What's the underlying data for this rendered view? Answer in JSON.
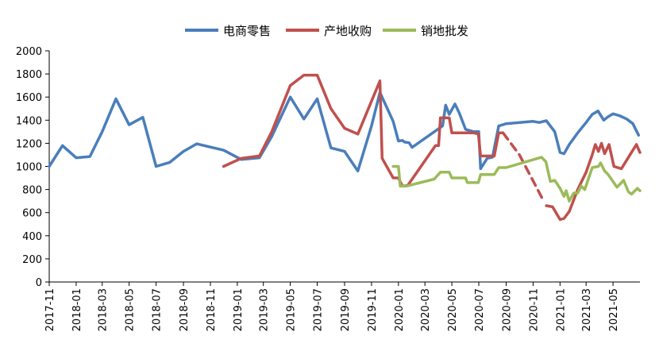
{
  "chart_data": {
    "type": "line",
    "title": "",
    "xlabel": "",
    "ylabel": "",
    "ylim": [
      0,
      2000
    ],
    "yticks": [
      0,
      200,
      400,
      600,
      800,
      1000,
      1200,
      1400,
      1600,
      1800,
      2000
    ],
    "xlim": [
      "2017-11",
      "2021-07"
    ],
    "xticks": [
      "2017-11",
      "2018-01",
      "2018-03",
      "2018-05",
      "2018-07",
      "2018-09",
      "2018-11",
      "2019-01",
      "2019-03",
      "2019-05",
      "2019-07",
      "2019-09",
      "2019-11",
      "2020-01",
      "2020-03",
      "2020-05",
      "2020-07",
      "2020-09",
      "2020-11",
      "2021-01",
      "2021-03",
      "2021-05"
    ],
    "grid": false,
    "legend": "top-center",
    "series": [
      {
        "name": "电商零售",
        "color": "#4A7EBB",
        "points": [
          [
            "2017-11-01",
            1000
          ],
          [
            "2017-12-01",
            1180
          ],
          [
            "2018-01-01",
            1075
          ],
          [
            "2018-02-01",
            1085
          ],
          [
            "2018-03-01",
            1300
          ],
          [
            "2018-04-01",
            1585
          ],
          [
            "2018-05-01",
            1360
          ],
          [
            "2018-06-01",
            1425
          ],
          [
            "2018-07-01",
            1000
          ],
          [
            "2018-08-01",
            1035
          ],
          [
            "2018-09-01",
            1130
          ],
          [
            "2018-10-01",
            1195
          ],
          [
            "2018-12-01",
            1140
          ],
          [
            "2019-01-10",
            1060
          ],
          [
            "2019-02-20",
            1075
          ],
          [
            "2019-03-20",
            1260
          ],
          [
            "2019-05-01",
            1600
          ],
          [
            "2019-06-01",
            1410
          ],
          [
            "2019-07-01",
            1585
          ],
          [
            "2019-08-01",
            1160
          ],
          [
            "2019-09-01",
            1130
          ],
          [
            "2019-10-01",
            960
          ],
          [
            "2019-11-01",
            1350
          ],
          [
            "2019-11-20",
            1640
          ],
          [
            "2019-12-20",
            1390
          ],
          [
            "2020-01-01",
            1220
          ],
          [
            "2020-01-10",
            1225
          ],
          [
            "2020-01-15",
            1210
          ],
          [
            "2020-01-25",
            1205
          ],
          [
            "2020-02-01",
            1165
          ],
          [
            "2020-04-10",
            1350
          ],
          [
            "2020-04-17",
            1530
          ],
          [
            "2020-04-25",
            1450
          ],
          [
            "2020-05-08",
            1540
          ],
          [
            "2020-05-18",
            1460
          ],
          [
            "2020-06-01",
            1320
          ],
          [
            "2020-06-20",
            1300
          ],
          [
            "2020-07-01",
            1300
          ],
          [
            "2020-07-05",
            980
          ],
          [
            "2020-07-20",
            1070
          ],
          [
            "2020-08-01",
            1080
          ],
          [
            "2020-08-15",
            1350
          ],
          [
            "2020-09-01",
            1370
          ],
          [
            "2020-11-01",
            1390
          ],
          [
            "2020-11-15",
            1380
          ],
          [
            "2020-12-01",
            1395
          ],
          [
            "2020-12-20",
            1300
          ],
          [
            "2021-01-01",
            1120
          ],
          [
            "2021-01-10",
            1110
          ],
          [
            "2021-01-22",
            1190
          ],
          [
            "2021-02-10",
            1290
          ],
          [
            "2021-03-01",
            1380
          ],
          [
            "2021-03-15",
            1450
          ],
          [
            "2021-03-28",
            1480
          ],
          [
            "2021-04-10",
            1400
          ],
          [
            "2021-04-20",
            1430
          ],
          [
            "2021-05-01",
            1455
          ],
          [
            "2021-05-15",
            1440
          ],
          [
            "2021-06-01",
            1410
          ],
          [
            "2021-06-15",
            1370
          ],
          [
            "2021-06-28",
            1270
          ]
        ]
      },
      {
        "name": "产地收购",
        "color": "#C0504D",
        "points": [
          [
            "2018-12-01",
            1000
          ],
          [
            "2019-01-10",
            1070
          ],
          [
            "2019-02-20",
            1090
          ],
          [
            "2019-03-20",
            1300
          ],
          [
            "2019-05-01",
            1700
          ],
          [
            "2019-06-01",
            1790
          ],
          [
            "2019-07-01",
            1790
          ],
          [
            "2019-08-01",
            1500
          ],
          [
            "2019-09-01",
            1330
          ],
          [
            "2019-10-01",
            1280
          ],
          [
            "2019-11-20",
            1740
          ],
          [
            "2019-11-25",
            1070
          ],
          [
            "2019-12-20",
            900
          ],
          [
            "2020-01-01",
            900
          ],
          [
            "2020-01-10",
            830
          ],
          [
            "2020-01-22",
            835
          ],
          [
            "2020-03-25",
            1180
          ],
          [
            "2020-04-01",
            1180
          ],
          [
            "2020-04-05",
            1420
          ],
          [
            "2020-04-25",
            1420
          ],
          [
            "2020-05-01",
            1290
          ],
          [
            "2020-06-20",
            1290
          ],
          [
            "2020-06-30",
            1280
          ],
          [
            "2020-07-05",
            1090
          ],
          [
            "2020-08-05",
            1090
          ],
          [
            "2020-08-15",
            1290
          ],
          [
            "2020-08-25",
            1290
          ]
        ],
        "points_dashed": [
          [
            "2020-08-25",
            1290
          ],
          [
            "2020-10-01",
            1100
          ],
          [
            "2020-11-25",
            700
          ]
        ],
        "points_after": [
          [
            "2020-12-01",
            660
          ],
          [
            "2020-12-15",
            650
          ],
          [
            "2021-01-01",
            540
          ],
          [
            "2021-01-10",
            550
          ],
          [
            "2021-01-22",
            610
          ],
          [
            "2021-02-10",
            800
          ],
          [
            "2021-03-01",
            950
          ],
          [
            "2021-03-15",
            1100
          ],
          [
            "2021-03-22",
            1190
          ],
          [
            "2021-03-29",
            1130
          ],
          [
            "2021-04-05",
            1200
          ],
          [
            "2021-04-12",
            1110
          ],
          [
            "2021-04-22",
            1190
          ],
          [
            "2021-05-03",
            1000
          ],
          [
            "2021-05-20",
            980
          ],
          [
            "2021-06-15",
            1140
          ],
          [
            "2021-06-23",
            1190
          ],
          [
            "2021-07-01",
            1120
          ]
        ]
      },
      {
        "name": "销地批发",
        "color": "#9BBB59",
        "points": [
          [
            "2019-12-20",
            1000
          ],
          [
            "2020-01-01",
            1000
          ],
          [
            "2020-01-05",
            830
          ],
          [
            "2020-01-20",
            830
          ],
          [
            "2020-03-22",
            890
          ],
          [
            "2020-04-05",
            950
          ],
          [
            "2020-04-25",
            950
          ],
          [
            "2020-05-01",
            900
          ],
          [
            "2020-06-01",
            900
          ],
          [
            "2020-06-05",
            860
          ],
          [
            "2020-06-30",
            860
          ],
          [
            "2020-07-05",
            930
          ],
          [
            "2020-08-05",
            930
          ],
          [
            "2020-08-15",
            990
          ],
          [
            "2020-09-01",
            990
          ],
          [
            "2020-11-20",
            1080
          ],
          [
            "2020-11-30",
            1040
          ],
          [
            "2020-12-10",
            870
          ],
          [
            "2020-12-20",
            880
          ],
          [
            "2021-01-01",
            810
          ],
          [
            "2021-01-10",
            740
          ],
          [
            "2021-01-15",
            790
          ],
          [
            "2021-01-22",
            700
          ],
          [
            "2021-02-01",
            770
          ],
          [
            "2021-02-10",
            770
          ],
          [
            "2021-02-18",
            830
          ],
          [
            "2021-02-26",
            800
          ],
          [
            "2021-03-15",
            990
          ],
          [
            "2021-03-29",
            1000
          ],
          [
            "2021-04-03",
            1030
          ],
          [
            "2021-04-12",
            960
          ],
          [
            "2021-04-20",
            930
          ],
          [
            "2021-05-10",
            820
          ],
          [
            "2021-05-25",
            880
          ],
          [
            "2021-06-05",
            780
          ],
          [
            "2021-06-12",
            760
          ],
          [
            "2021-06-25",
            810
          ],
          [
            "2021-07-01",
            790
          ]
        ]
      }
    ]
  }
}
